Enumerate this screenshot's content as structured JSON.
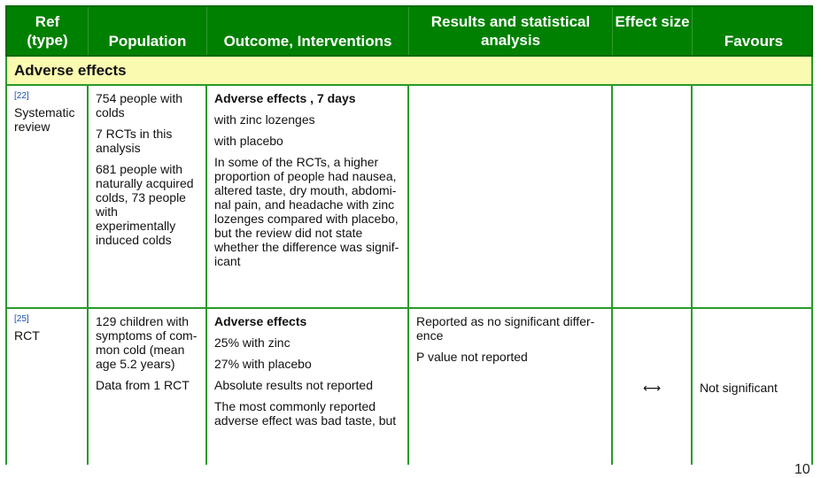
{
  "header": {
    "ref": "Ref\n(type)",
    "population": "Population",
    "outcome": "Outcome, Interventions",
    "results": "Results and statistical analysis",
    "effect": "Effect size",
    "favours": "Favours"
  },
  "section_title": "Adverse effects",
  "rows": [
    {
      "ref_num": "[22]",
      "type": "Systematic review",
      "population": [
        "754 people with colds",
        "7 RCTs in this analysis",
        "681 people with naturally acquired colds, 73 people with experimentally induced colds"
      ],
      "outcome_title": "Adverse effects , 7 days",
      "outcome": [
        "with zinc lozenges",
        "with placebo",
        "In some of the RCTs, a higher proportion of people had nausea, altered taste, dry mouth, abdomi-nal pain, and headache with zinc lozenges compared with placebo, but the review did not state whether the difference was signif-icant"
      ],
      "results": [],
      "effect": "",
      "favours": ""
    },
    {
      "ref_num": "[25]",
      "type": "RCT",
      "population": [
        "129 children with symptoms of com-mon cold (mean age 5.2 years)",
        "Data from 1 RCT"
      ],
      "outcome_title": "Adverse effects",
      "outcome": [
        "25% with zinc",
        "27% with placebo",
        "Absolute results not reported",
        "The most commonly reported adverse effect was bad taste, but"
      ],
      "results": [
        "Reported as no significant differ-ence",
        "P value not reported"
      ],
      "effect": "⟷",
      "favours": "Not significant"
    }
  ],
  "page_number": "10"
}
